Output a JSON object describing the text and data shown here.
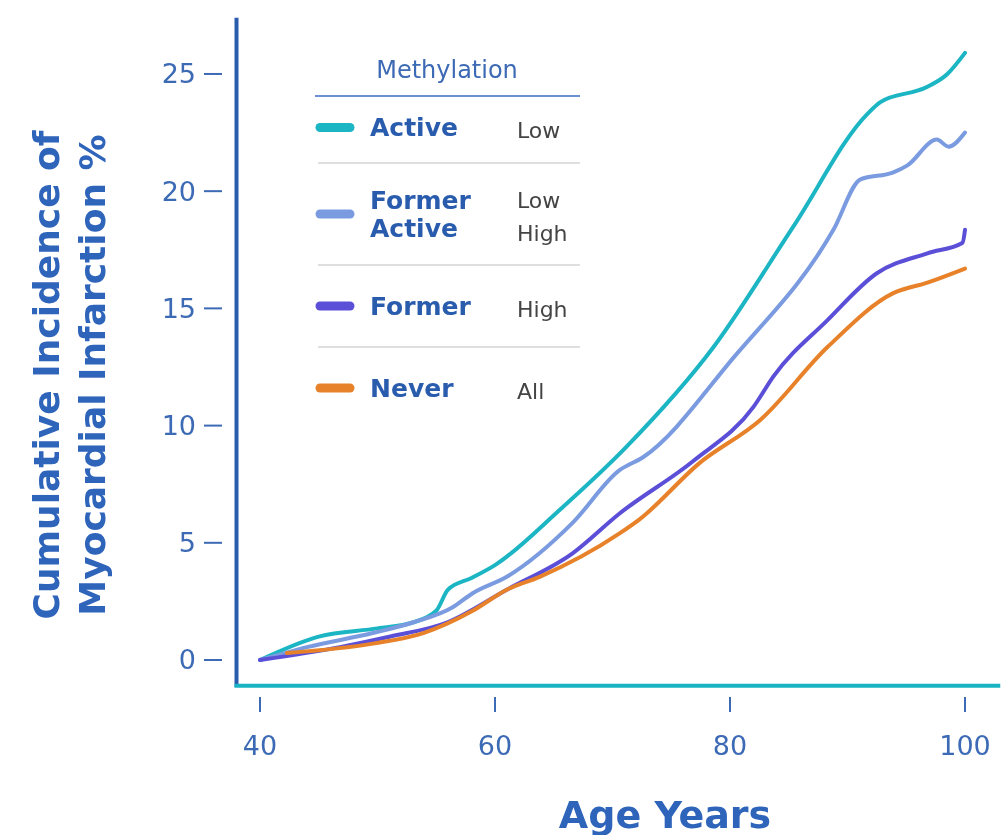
{
  "chart_data": {
    "type": "line",
    "xlabel": "Age Years",
    "ylabel": "Cumulative Incidence of\nMyocardial Infarction %",
    "legend_title": "Methylation",
    "legend": "top left",
    "grid": false,
    "marker": "none",
    "line_style": "solid",
    "xlim": [
      38,
      103
    ],
    "xticks": [
      40,
      60,
      80,
      100
    ],
    "ylim": [
      -1.1,
      27.4
    ],
    "yticks": [
      0,
      5,
      10,
      15,
      20,
      25
    ],
    "annotations": [
      "Low",
      "Low\nHigh",
      "High",
      "All"
    ],
    "series": [
      {
        "name": "Active",
        "color": "#1bb5c4",
        "x": [
          40,
          45,
          50,
          53,
          55,
          56,
          58,
          60,
          65.5,
          71.2,
          78.6,
          85.4,
          91.7,
          92.8,
          96.8,
          98.5,
          100
        ],
        "values": [
          0,
          1.0,
          1.35,
          1.6,
          2.1,
          3.0,
          3.5,
          4.05,
          6.4,
          9.1,
          13.35,
          18.5,
          23.3,
          23.8,
          24.45,
          25.0,
          25.9
        ]
      },
      {
        "name": "Former\nActive",
        "color": "#7b9be0",
        "x": [
          40,
          44,
          49.6,
          53,
          56.4,
          58.1,
          61,
          66.6,
          70.6,
          72.6,
          80.3,
          88.8,
          91.1,
          93.9,
          95.1,
          97.6,
          98.6,
          100
        ],
        "values": [
          0,
          0.55,
          1.15,
          1.6,
          2.25,
          2.85,
          3.55,
          5.85,
          8.1,
          8.65,
          12.9,
          18.35,
          20.5,
          20.8,
          21.1,
          22.2,
          21.9,
          22.5
        ]
      },
      {
        "name": "Former",
        "color": "#5b4fd8",
        "x": [
          40,
          46.8,
          51.1,
          55.9,
          61,
          66.6,
          70.6,
          76.9,
          82,
          83.7,
          88.3,
          92.5,
          96.8,
          99.8,
          100
        ],
        "values": [
          0,
          0.55,
          1.0,
          1.6,
          3.0,
          4.55,
          6.25,
          8.5,
          10.8,
          12.1,
          14.5,
          16.5,
          17.35,
          17.8,
          18.35
        ]
      },
      {
        "name": "Never",
        "color": "#e8822a",
        "x": [
          42.3,
          49.6,
          53.9,
          58.1,
          61,
          63.8,
          70.6,
          72.3,
          77.4,
          82.6,
          88.3,
          93.9,
          96.8,
          100
        ],
        "values": [
          0.3,
          0.7,
          1.15,
          2.1,
          3.0,
          3.55,
          5.4,
          6.0,
          8.4,
          10.25,
          13.35,
          15.65,
          16.1,
          16.7
        ]
      }
    ]
  }
}
